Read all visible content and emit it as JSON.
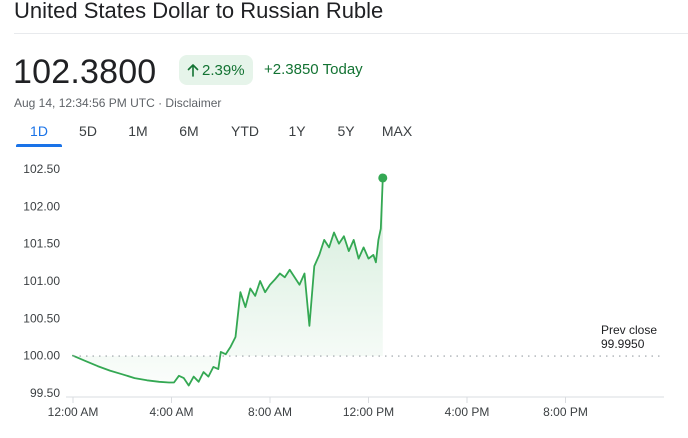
{
  "header": {
    "title": "United States Dollar to Russian Ruble",
    "price": "102.3800",
    "pct_change": "2.39%",
    "abs_change": "+2.3850",
    "today_label": "Today",
    "timestamp": "Aug 14, 12:34:56 PM UTC · ",
    "disclaimer": "Disclaimer"
  },
  "ranges": {
    "active": "1D",
    "items": [
      "1D",
      "5D",
      "1M",
      "6M",
      "YTD",
      "1Y",
      "5Y",
      "MAX"
    ]
  },
  "colors": {
    "accent_blue": "#1a73e8",
    "positive_green": "#137333",
    "line_green": "#34a853",
    "badge_bg": "#e6f4ea"
  },
  "icons": {
    "change_arrow": "arrow-up-icon"
  },
  "chart_data": {
    "type": "area",
    "x_unit": "hours (UTC)",
    "xlim": [
      0,
      24
    ],
    "ylim": [
      99.5,
      102.6
    ],
    "y_ticks": [
      99.5,
      100.0,
      100.5,
      101.0,
      101.5,
      102.0,
      102.5
    ],
    "y_tick_labels": [
      "99.50",
      "100.00",
      "100.50",
      "101.00",
      "101.50",
      "102.00",
      "102.50"
    ],
    "x_ticks": [
      0,
      4,
      8,
      12,
      16,
      20
    ],
    "x_tick_labels": [
      "12:00 AM",
      "4:00 AM",
      "8:00 AM",
      "12:00 PM",
      "4:00 PM",
      "8:00 PM"
    ],
    "prev_close": {
      "label": "Prev close",
      "value_text": "99.9950",
      "value": 99.995
    },
    "last_point": {
      "x": 12.58,
      "y": 102.38
    },
    "series": [
      {
        "x": [
          0,
          0.5,
          1,
          1.5,
          2,
          2.5,
          3,
          3.5,
          3.9,
          4.1,
          4.3,
          4.5,
          4.7,
          4.9,
          5.1,
          5.3,
          5.5,
          5.7,
          5.9,
          6.0,
          6.2,
          6.4,
          6.6,
          6.8,
          7.0,
          7.2,
          7.4,
          7.6,
          7.8,
          8.0,
          8.2,
          8.4,
          8.6,
          8.8,
          9.0,
          9.2,
          9.4,
          9.6,
          9.8,
          10.0,
          10.2,
          10.4,
          10.6,
          10.8,
          11.0,
          11.2,
          11.4,
          11.6,
          11.8,
          12.0,
          12.2,
          12.3,
          12.4,
          12.5,
          12.58
        ],
        "y": [
          100.0,
          99.93,
          99.86,
          99.8,
          99.75,
          99.7,
          99.67,
          99.65,
          99.64,
          99.64,
          99.73,
          99.7,
          99.6,
          99.72,
          99.65,
          99.78,
          99.72,
          99.85,
          99.82,
          100.05,
          100.02,
          100.12,
          100.25,
          100.85,
          100.65,
          100.9,
          100.8,
          101.0,
          100.85,
          100.95,
          101.02,
          101.1,
          101.05,
          101.15,
          101.05,
          100.95,
          101.1,
          100.4,
          101.2,
          101.35,
          101.55,
          101.45,
          101.65,
          101.5,
          101.6,
          101.4,
          101.55,
          101.3,
          101.45,
          101.3,
          101.35,
          101.25,
          101.55,
          101.7,
          102.38
        ]
      }
    ]
  }
}
